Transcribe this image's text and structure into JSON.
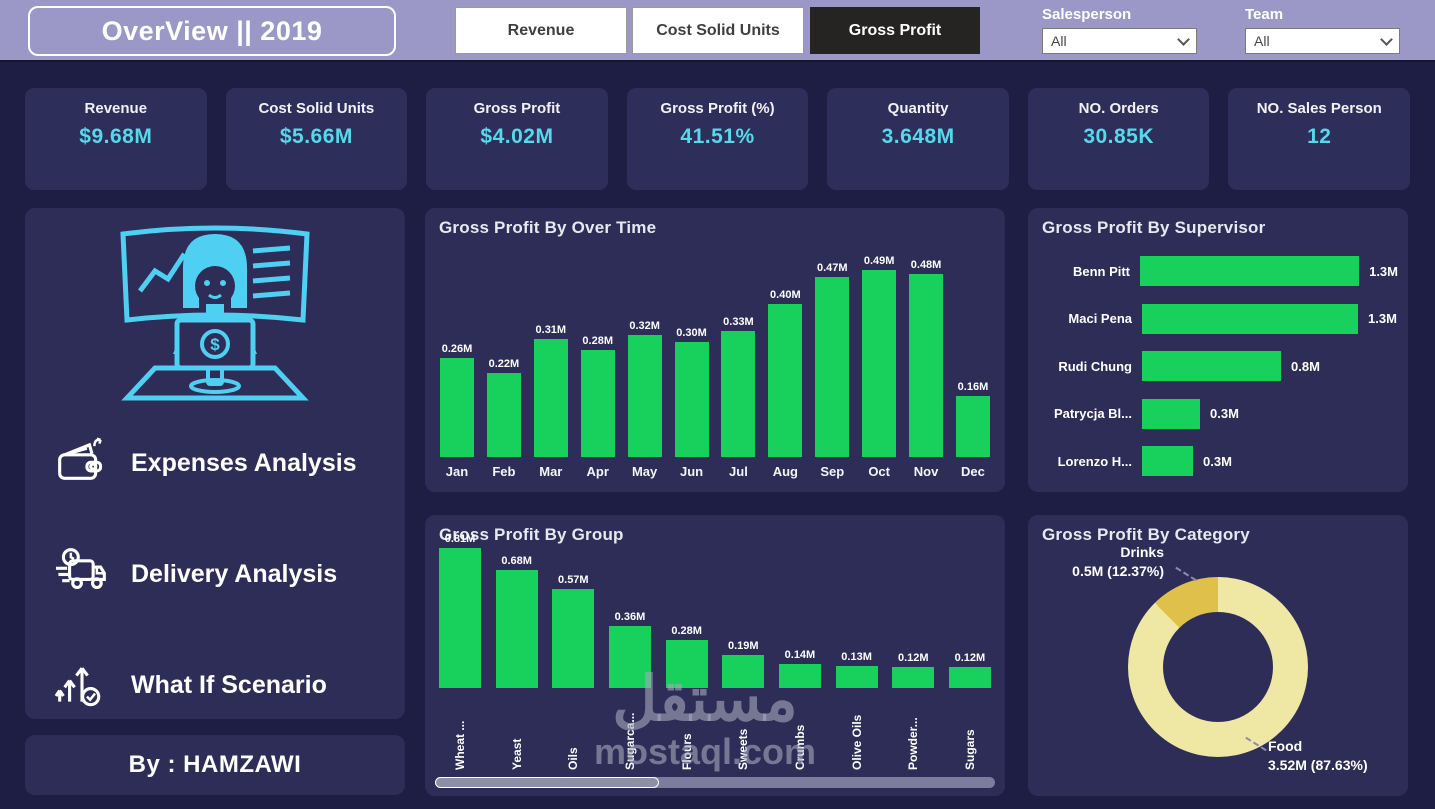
{
  "topbar": {
    "title": "OverView || 2019",
    "buttons": [
      {
        "label": "Revenue",
        "active": false
      },
      {
        "label": "Cost Solid Units",
        "active": false
      },
      {
        "label": "Gross Profit",
        "active": true
      }
    ],
    "slicers": [
      {
        "label": "Salesperson",
        "value": "All"
      },
      {
        "label": "Team",
        "value": "All"
      }
    ]
  },
  "kpis": [
    {
      "label": "Revenue",
      "value": "$9.68M"
    },
    {
      "label": "Cost Solid Units",
      "value": "$5.66M"
    },
    {
      "label": "Gross Profit",
      "value": "$4.02M"
    },
    {
      "label": "Gross Profit (%)",
      "value": "41.51%"
    },
    {
      "label": "Quantity",
      "value": "3.648M"
    },
    {
      "label": "NO. Orders",
      "value": "30.85K"
    },
    {
      "label": "NO. Sales Person",
      "value": "12"
    }
  ],
  "sidebar": {
    "menu": [
      {
        "label": "Expenses Analysis",
        "icon": "wallet-icon"
      },
      {
        "label": "Delivery Analysis",
        "icon": "truck-icon"
      },
      {
        "label": "What If Scenario",
        "icon": "growth-icon"
      }
    ],
    "credit": "By : HAMZAWI"
  },
  "watermark": {
    "arabic": "مستقل",
    "latin": "mostaql.com"
  },
  "colors": {
    "bar_green": "#18d05c",
    "accent_cyan": "#55d9eb",
    "topbar_purple": "#9b98c7",
    "panel": "#2d2d58",
    "donut_food": "#efe8a4",
    "donut_drinks": "#dec04a"
  },
  "chart_data": [
    {
      "type": "bar",
      "title": "Gross Profit By Over Time",
      "categories": [
        "Jan",
        "Feb",
        "Mar",
        "Apr",
        "May",
        "Jun",
        "Jul",
        "Aug",
        "Sep",
        "Oct",
        "Nov",
        "Dec"
      ],
      "values": [
        0.26,
        0.22,
        0.31,
        0.28,
        0.32,
        0.3,
        0.33,
        0.4,
        0.47,
        0.49,
        0.48,
        0.16
      ],
      "value_labels": [
        "0.26M",
        "0.22M",
        "0.31M",
        "0.28M",
        "0.32M",
        "0.30M",
        "0.33M",
        "0.40M",
        "0.47M",
        "0.49M",
        "0.48M",
        "0.16M"
      ],
      "unit": "M",
      "ylim": [
        0,
        0.52
      ],
      "grid": false,
      "legend": "none"
    },
    {
      "type": "bar",
      "title": "Gross Profit By Group",
      "categories": [
        "Wheat ...",
        "Yeast",
        "Oils",
        "Sugarca...",
        "Flours",
        "Sweets",
        "Crumbs",
        "Olive Oils",
        "Powder...",
        "Sugars"
      ],
      "values": [
        0.81,
        0.68,
        0.57,
        0.36,
        0.28,
        0.19,
        0.14,
        0.13,
        0.12,
        0.12
      ],
      "value_labels": [
        "0.81M",
        "0.68M",
        "0.57M",
        "0.36M",
        "0.28M",
        "0.19M",
        "0.14M",
        "0.13M",
        "0.12M",
        "0.12M"
      ],
      "unit": "M",
      "ylim": [
        0,
        0.85
      ],
      "grid": false,
      "legend": "none"
    },
    {
      "type": "bar",
      "title": "Gross Profit By Supervisor",
      "orientation": "horizontal",
      "categories": [
        "Benn Pitt",
        "Maci Pena",
        "Rudi Chung",
        "Patrycja Bl...",
        "Lorenzo H..."
      ],
      "values": [
        1.32,
        1.27,
        0.82,
        0.34,
        0.3
      ],
      "value_labels": [
        "1.3M",
        "1.3M",
        "0.8M",
        "0.3M",
        "0.3M"
      ],
      "unit": "M",
      "xlim": [
        0,
        1.4
      ],
      "grid": false,
      "legend": "none"
    },
    {
      "type": "pie",
      "title": "Gross Profit By Category",
      "slices": [
        {
          "label": "Drinks",
          "value": 0.5,
          "percent": 12.37,
          "value_label": "0.5M (12.37%)",
          "color": "#dec04a"
        },
        {
          "label": "Food",
          "value": 3.52,
          "percent": 87.63,
          "value_label": "3.52M (87.63%)",
          "color": "#efe8a4"
        }
      ],
      "legend": "data-labels"
    }
  ]
}
